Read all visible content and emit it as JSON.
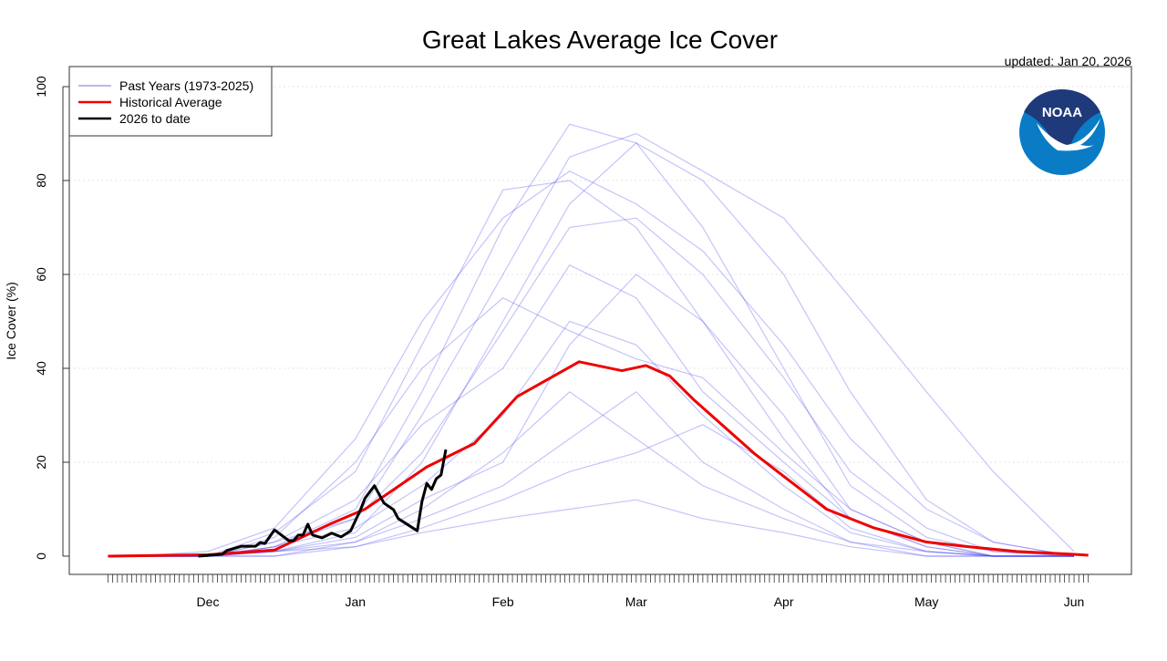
{
  "chart_data": {
    "type": "line",
    "title": "Great Lakes Average Ice Cover",
    "subtitle": "updated: Jan 20, 2026",
    "ylabel": "Ice Cover (%)",
    "xlabel": "",
    "ylim": [
      0,
      100
    ],
    "xlim": [
      "2025-11-10",
      "2026-06-04"
    ],
    "yticks": [
      0,
      20,
      40,
      60,
      80,
      100
    ],
    "xticks": [
      {
        "date": "2025-12-01",
        "label": "Dec"
      },
      {
        "date": "2026-01-01",
        "label": "Jan"
      },
      {
        "date": "2026-02-01",
        "label": "Feb"
      },
      {
        "date": "2026-03-01",
        "label": "Mar"
      },
      {
        "date": "2026-04-01",
        "label": "Apr"
      },
      {
        "date": "2026-05-01",
        "label": "May"
      },
      {
        "date": "2026-06-01",
        "label": "Jun"
      }
    ],
    "grid": "horizontal dotted",
    "legend_position": "top-left",
    "legend": [
      {
        "label": "Past Years (1973-2025)",
        "color": "#b8b8f5"
      },
      {
        "label": "Historical Average",
        "color": "#ee0000"
      },
      {
        "label": "2026 to date",
        "color": "#000000"
      }
    ],
    "past_years": {
      "color": "#3a3af0",
      "dates": [
        "2025-11-15",
        "2025-12-01",
        "2025-12-15",
        "2026-01-01",
        "2026-01-15",
        "2026-02-01",
        "2026-02-15",
        "2026-03-01",
        "2026-03-15",
        "2026-04-01",
        "2026-04-15",
        "2026-05-01",
        "2026-05-15",
        "2026-06-01"
      ],
      "series": [
        [
          0,
          0,
          2,
          10,
          35,
          70,
          92,
          88,
          80,
          60,
          35,
          12,
          3,
          0
        ],
        [
          0,
          0,
          3,
          8,
          30,
          60,
          85,
          90,
          82,
          72,
          55,
          35,
          18,
          1
        ],
        [
          0,
          0,
          1,
          5,
          20,
          50,
          75,
          88,
          70,
          40,
          15,
          4,
          1,
          0
        ],
        [
          0,
          0,
          5,
          18,
          45,
          78,
          80,
          70,
          50,
          25,
          8,
          2,
          0,
          0
        ],
        [
          0,
          0,
          1,
          4,
          12,
          20,
          45,
          60,
          50,
          30,
          10,
          3,
          0,
          0
        ],
        [
          0,
          0,
          0,
          3,
          8,
          15,
          25,
          35,
          20,
          10,
          3,
          0,
          0,
          0
        ],
        [
          0,
          0,
          2,
          6,
          15,
          30,
          50,
          45,
          30,
          15,
          5,
          1,
          0,
          0
        ],
        [
          0,
          0,
          1,
          2,
          5,
          8,
          10,
          12,
          8,
          5,
          2,
          0,
          0,
          0
        ],
        [
          0,
          0,
          3,
          12,
          28,
          40,
          62,
          55,
          35,
          20,
          8,
          2,
          0,
          0
        ],
        [
          0,
          0,
          1,
          3,
          10,
          22,
          35,
          25,
          15,
          8,
          3,
          1,
          0,
          0
        ],
        [
          0,
          0,
          4,
          20,
          40,
          55,
          48,
          42,
          38,
          22,
          10,
          3,
          0,
          0
        ],
        [
          0,
          0,
          0,
          2,
          6,
          12,
          18,
          22,
          28,
          18,
          6,
          1,
          0,
          0
        ],
        [
          0,
          0,
          2,
          8,
          22,
          48,
          70,
          72,
          60,
          38,
          18,
          6,
          1,
          0
        ],
        [
          0,
          1,
          6,
          25,
          50,
          72,
          82,
          75,
          65,
          45,
          25,
          10,
          3,
          0
        ]
      ]
    },
    "historical_average": {
      "color": "#ee0000",
      "points": [
        [
          "2025-11-10",
          0
        ],
        [
          "2025-12-01",
          0.3
        ],
        [
          "2025-12-15",
          1.3
        ],
        [
          "2025-12-27",
          7
        ],
        [
          "2026-01-03",
          10
        ],
        [
          "2026-01-16",
          19
        ],
        [
          "2026-01-26",
          24
        ],
        [
          "2026-02-04",
          34
        ],
        [
          "2026-02-17",
          41.4
        ],
        [
          "2026-02-26",
          39.5
        ],
        [
          "2026-03-03",
          40.6
        ],
        [
          "2026-03-08",
          38.4
        ],
        [
          "2026-03-13",
          33.4
        ],
        [
          "2026-03-26",
          21.7
        ],
        [
          "2026-04-01",
          17
        ],
        [
          "2026-04-10",
          10
        ],
        [
          "2026-04-20",
          6
        ],
        [
          "2026-05-01",
          3
        ],
        [
          "2026-05-10",
          2
        ],
        [
          "2026-05-20",
          1
        ],
        [
          "2026-06-01",
          0.4
        ],
        [
          "2026-06-04",
          0.2
        ]
      ]
    },
    "current_season": {
      "color": "#000000",
      "points": [
        [
          "2025-11-29",
          0
        ],
        [
          "2025-12-04",
          0.4
        ],
        [
          "2025-12-05",
          1.2
        ],
        [
          "2025-12-08",
          2.1
        ],
        [
          "2025-12-11",
          2.1
        ],
        [
          "2025-12-12",
          2.9
        ],
        [
          "2025-12-13",
          2.7
        ],
        [
          "2025-12-15",
          5.6
        ],
        [
          "2025-12-18",
          3.3
        ],
        [
          "2025-12-19",
          3.3
        ],
        [
          "2025-12-20",
          4.5
        ],
        [
          "2025-12-21",
          4.5
        ],
        [
          "2025-12-22",
          6.8
        ],
        [
          "2025-12-23",
          4.5
        ],
        [
          "2025-12-25",
          3.9
        ],
        [
          "2025-12-27",
          4.9
        ],
        [
          "2025-12-29",
          4.1
        ],
        [
          "2025-12-31",
          5.4
        ],
        [
          "2026-01-02",
          9.7
        ],
        [
          "2026-01-03",
          12.3
        ],
        [
          "2026-01-05",
          15
        ],
        [
          "2026-01-07",
          11.3
        ],
        [
          "2026-01-09",
          9.9
        ],
        [
          "2026-01-10",
          8
        ],
        [
          "2026-01-14",
          5.4
        ],
        [
          "2026-01-15",
          11.7
        ],
        [
          "2026-01-16",
          15.5
        ],
        [
          "2026-01-17",
          14.2
        ],
        [
          "2026-01-18",
          16.5
        ],
        [
          "2026-01-19",
          17.3
        ],
        [
          "2026-01-20",
          22.7
        ]
      ]
    }
  },
  "logo": {
    "text": "NOAA",
    "dark": "#1f3a7a",
    "light": "#0a7cc6"
  }
}
